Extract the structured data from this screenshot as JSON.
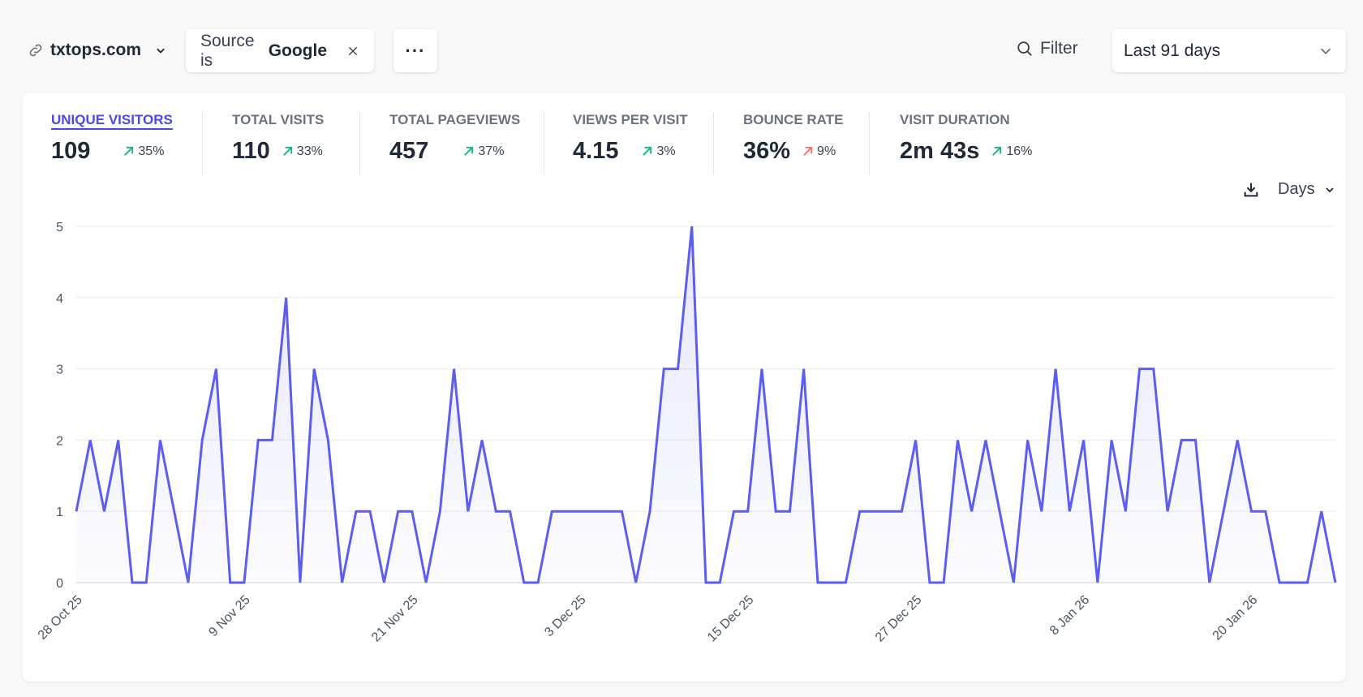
{
  "header": {
    "site": "txtops.com",
    "filter_prefix": "Source is",
    "filter_value": "Google",
    "more_label": "···",
    "filter_button": "Filter",
    "date_range": "Last 91 days"
  },
  "metrics": [
    {
      "label": "UNIQUE VISITORS",
      "value": "109",
      "change": "35%",
      "trend": "up",
      "good": true,
      "active": true
    },
    {
      "label": "TOTAL VISITS",
      "value": "110",
      "change": "33%",
      "trend": "up",
      "good": true
    },
    {
      "label": "TOTAL PAGEVIEWS",
      "value": "457",
      "change": "37%",
      "trend": "up",
      "good": true
    },
    {
      "label": "VIEWS PER VISIT",
      "value": "4.15",
      "change": "3%",
      "trend": "up",
      "good": true
    },
    {
      "label": "BOUNCE RATE",
      "value": "36%",
      "change": "9%",
      "trend": "up",
      "good": false
    },
    {
      "label": "VISIT DURATION",
      "value": "2m 43s",
      "change": "16%",
      "trend": "up",
      "good": true
    }
  ],
  "chart_controls": {
    "interval": "Days"
  },
  "colors": {
    "accent": "#5b5ef0",
    "positive": "#10b981",
    "negative": "#f87171"
  },
  "chart_data": {
    "type": "area",
    "ylim": [
      0,
      5
    ],
    "y_ticks": [
      "0",
      "1",
      "2",
      "3",
      "4",
      "5"
    ],
    "grid": true,
    "x_tick_labels": [
      "28 Oct 25",
      "9 Nov 25",
      "21 Nov 25",
      "3 Dec 25",
      "15 Dec 25",
      "27 Dec 25",
      "8 Jan 26",
      "20 Jan 26"
    ],
    "x": [
      "28 Oct 25",
      "29 Oct 25",
      "30 Oct 25",
      "31 Oct 25",
      "1 Nov 25",
      "2 Nov 25",
      "3 Nov 25",
      "4 Nov 25",
      "5 Nov 25",
      "6 Nov 25",
      "7 Nov 25",
      "8 Nov 25",
      "9 Nov 25",
      "10 Nov 25",
      "11 Nov 25",
      "12 Nov 25",
      "13 Nov 25",
      "14 Nov 25",
      "15 Nov 25",
      "16 Nov 25",
      "17 Nov 25",
      "18 Nov 25",
      "19 Nov 25",
      "20 Nov 25",
      "21 Nov 25",
      "22 Nov 25",
      "23 Nov 25",
      "24 Nov 25",
      "25 Nov 25",
      "26 Nov 25",
      "27 Nov 25",
      "28 Nov 25",
      "29 Nov 25",
      "30 Nov 25",
      "1 Dec 25",
      "2 Dec 25",
      "3 Dec 25",
      "4 Dec 25",
      "5 Dec 25",
      "6 Dec 25",
      "7 Dec 25",
      "8 Dec 25",
      "9 Dec 25",
      "10 Dec 25",
      "11 Dec 25",
      "12 Dec 25",
      "13 Dec 25",
      "14 Dec 25",
      "15 Dec 25",
      "16 Dec 25",
      "17 Dec 25",
      "18 Dec 25",
      "19 Dec 25",
      "20 Dec 25",
      "21 Dec 25",
      "22 Dec 25",
      "23 Dec 25",
      "24 Dec 25",
      "25 Dec 25",
      "26 Dec 25",
      "27 Dec 25",
      "28 Dec 25",
      "29 Dec 25",
      "30 Dec 25",
      "31 Dec 25",
      "1 Jan 26",
      "2 Jan 26",
      "3 Jan 26",
      "4 Jan 26",
      "5 Jan 26",
      "6 Jan 26",
      "7 Jan 26",
      "8 Jan 26",
      "9 Jan 26",
      "10 Jan 26",
      "11 Jan 26",
      "12 Jan 26",
      "13 Jan 26",
      "14 Jan 26",
      "15 Jan 26",
      "16 Jan 26",
      "17 Jan 26",
      "18 Jan 26",
      "19 Jan 26",
      "20 Jan 26",
      "21 Jan 26",
      "22 Jan 26",
      "23 Jan 26",
      "24 Jan 26",
      "25 Jan 26",
      "26 Jan 26"
    ],
    "series": [
      {
        "values": [
          1,
          2,
          1,
          2,
          0,
          0,
          2,
          1,
          0,
          2,
          3,
          0,
          0,
          2,
          2,
          4,
          0,
          3,
          2,
          0,
          1,
          1,
          0,
          1,
          1,
          0,
          1,
          3,
          1,
          2,
          1,
          1,
          0,
          0,
          1,
          1,
          1,
          1,
          1,
          1,
          0,
          1,
          3,
          3,
          5,
          0,
          0,
          1,
          1,
          3,
          1,
          1,
          3,
          0,
          0,
          0,
          1,
          1,
          1,
          1,
          2,
          0,
          0,
          2,
          1,
          2,
          1,
          0,
          2,
          1,
          3,
          1,
          2,
          0,
          2,
          1,
          3,
          3,
          1,
          2,
          2,
          0,
          1,
          2,
          1,
          1,
          0,
          0,
          0,
          1,
          0
        ]
      }
    ]
  }
}
